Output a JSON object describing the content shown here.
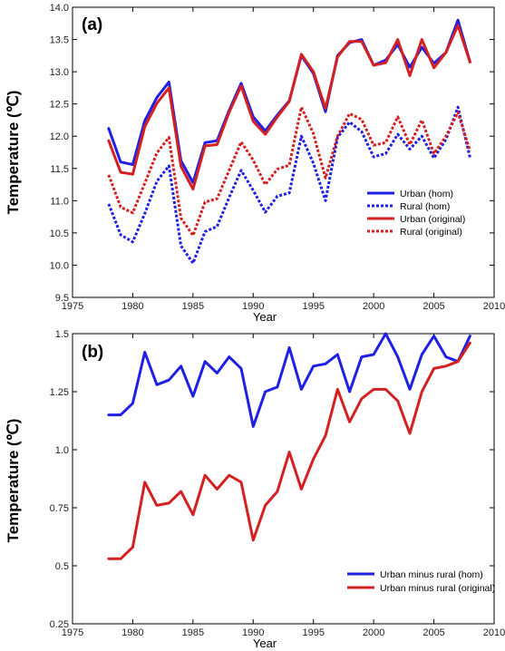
{
  "chart_data": [
    {
      "type": "line",
      "panel_label": "(a)",
      "xlabel": "Year",
      "ylabel": "Temperature (℃)",
      "xlim": [
        1975,
        2010
      ],
      "ylim": [
        9.5,
        14.0
      ],
      "xticks": [
        "1975",
        "1980",
        "1985",
        "1990",
        "1995",
        "2000",
        "2005",
        "2010"
      ],
      "yticks": [
        "9.5",
        "10.0",
        "10.5",
        "11.0",
        "11.5",
        "12.0",
        "12.5",
        "13.0",
        "13.5",
        "14.0"
      ],
      "grid": false,
      "legend_position": "right",
      "x": [
        1978,
        1979,
        1980,
        1981,
        1982,
        1983,
        1984,
        1985,
        1986,
        1987,
        1988,
        1989,
        1990,
        1991,
        1992,
        1993,
        1994,
        1995,
        1996,
        1997,
        1998,
        1999,
        2000,
        2001,
        2002,
        2003,
        2004,
        2005,
        2006,
        2007,
        2008
      ],
      "series": [
        {
          "name": "Urban (hom)",
          "color": "#1f1fe6",
          "dash": "solid",
          "values": [
            12.12,
            11.6,
            11.56,
            12.24,
            12.6,
            12.84,
            11.62,
            11.28,
            11.9,
            11.93,
            12.4,
            12.82,
            12.3,
            12.08,
            12.33,
            12.55,
            13.25,
            12.97,
            12.38,
            13.25,
            13.45,
            13.5,
            13.1,
            13.18,
            13.42,
            13.07,
            13.38,
            13.13,
            13.3,
            13.8,
            13.15
          ]
        },
        {
          "name": "Rural (hom)",
          "color": "#1f1fe6",
          "dash": "dotted",
          "values": [
            10.95,
            10.47,
            10.36,
            10.8,
            11.3,
            11.54,
            10.3,
            10.03,
            10.52,
            10.6,
            11.05,
            11.47,
            11.16,
            10.82,
            11.07,
            11.12,
            12.0,
            11.58,
            11.0,
            11.98,
            12.22,
            12.07,
            11.68,
            11.73,
            12.03,
            11.8,
            12.0,
            11.66,
            11.95,
            12.45,
            11.67
          ]
        },
        {
          "name": "Urban (original)",
          "color": "#d42020",
          "dash": "solid",
          "values": [
            11.93,
            11.44,
            11.41,
            12.15,
            12.51,
            12.75,
            11.53,
            11.18,
            11.85,
            11.87,
            12.37,
            12.78,
            12.23,
            12.03,
            12.3,
            12.54,
            13.27,
            13.0,
            12.43,
            13.23,
            13.47,
            13.47,
            13.1,
            13.14,
            13.5,
            12.94,
            13.5,
            13.06,
            13.3,
            13.72,
            13.15
          ]
        },
        {
          "name": "Rural (original)",
          "color": "#d42020",
          "dash": "dotted",
          "values": [
            11.4,
            10.9,
            10.81,
            11.27,
            11.74,
            11.98,
            10.73,
            10.46,
            10.98,
            11.03,
            11.47,
            11.91,
            11.63,
            11.25,
            11.49,
            11.55,
            12.45,
            12.04,
            11.35,
            12.0,
            12.35,
            12.26,
            11.86,
            11.9,
            12.3,
            11.87,
            12.25,
            11.73,
            12.0,
            12.37,
            11.77
          ]
        }
      ]
    },
    {
      "type": "line",
      "panel_label": "(b)",
      "xlabel": "Year",
      "ylabel": "Temperature (℃)",
      "xlim": [
        1975,
        2010
      ],
      "ylim": [
        0.25,
        1.5
      ],
      "xticks": [
        "1975",
        "1980",
        "1985",
        "1990",
        "1995",
        "2000",
        "2005",
        "2010"
      ],
      "yticks": [
        "0.25",
        "0.5",
        "0.75",
        "1.0",
        "1.25",
        "1.5"
      ],
      "grid": false,
      "legend_position": "bottom-right",
      "x": [
        1978,
        1979,
        1980,
        1981,
        1982,
        1983,
        1984,
        1985,
        1986,
        1987,
        1988,
        1989,
        1990,
        1991,
        1992,
        1993,
        1994,
        1995,
        1996,
        1997,
        1998,
        1999,
        2000,
        2001,
        2002,
        2003,
        2004,
        2005,
        2006,
        2007,
        2008
      ],
      "series": [
        {
          "name": "Urban minus rural (hom)",
          "color": "#1f1fe6",
          "dash": "solid",
          "values": [
            1.15,
            1.15,
            1.2,
            1.42,
            1.28,
            1.3,
            1.36,
            1.23,
            1.38,
            1.33,
            1.4,
            1.35,
            1.1,
            1.25,
            1.27,
            1.44,
            1.26,
            1.36,
            1.37,
            1.41,
            1.25,
            1.4,
            1.41,
            1.5,
            1.4,
            1.26,
            1.41,
            1.49,
            1.4,
            1.38,
            1.49
          ]
        },
        {
          "name": "Urban minus rural (original)",
          "color": "#d42020",
          "dash": "solid",
          "values": [
            0.53,
            0.53,
            0.58,
            0.86,
            0.76,
            0.77,
            0.82,
            0.72,
            0.89,
            0.83,
            0.89,
            0.86,
            0.61,
            0.76,
            0.82,
            0.99,
            0.83,
            0.96,
            1.06,
            1.26,
            1.12,
            1.22,
            1.26,
            1.26,
            1.21,
            1.07,
            1.25,
            1.35,
            1.36,
            1.38,
            1.46
          ]
        }
      ]
    }
  ]
}
